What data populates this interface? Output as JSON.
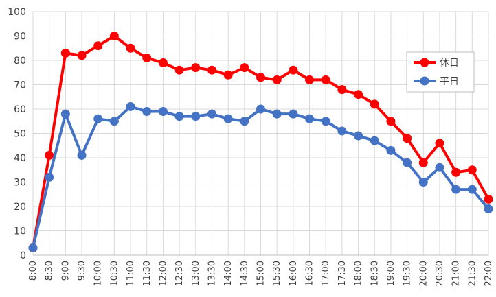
{
  "chart_data": {
    "type": "line",
    "title": "",
    "xlabel": "",
    "ylabel": "",
    "ylim": [
      0,
      100
    ],
    "yticks": [
      0,
      10,
      20,
      30,
      40,
      50,
      60,
      70,
      80,
      90,
      100
    ],
    "grid": true,
    "legend_position": "right",
    "categories": [
      "8:00",
      "8:30",
      "9:00",
      "9:30",
      "10:00",
      "10:30",
      "11:00",
      "11:30",
      "12:00",
      "12:30",
      "13:00",
      "13:30",
      "14:00",
      "14:30",
      "15:00",
      "15:30",
      "16:00",
      "16:30",
      "17:00",
      "17:30",
      "18:00",
      "18:30",
      "19:00",
      "19:30",
      "20:00",
      "20:30",
      "21:00",
      "21:30",
      "22:00"
    ],
    "series": [
      {
        "name": "休日",
        "color": "#ff0000",
        "values": [
          3,
          41,
          83,
          82,
          86,
          90,
          85,
          81,
          79,
          76,
          77,
          76,
          74,
          77,
          73,
          72,
          76,
          72,
          72,
          68,
          66,
          62,
          55,
          48,
          38,
          46,
          34,
          35,
          23
        ]
      },
      {
        "name": "平日",
        "color": "#4472c4",
        "values": [
          3,
          32,
          58,
          41,
          56,
          55,
          61,
          59,
          59,
          57,
          57,
          58,
          56,
          55,
          60,
          58,
          58,
          56,
          55,
          51,
          49,
          47,
          43,
          38,
          30,
          36,
          27,
          27,
          19
        ]
      }
    ]
  }
}
